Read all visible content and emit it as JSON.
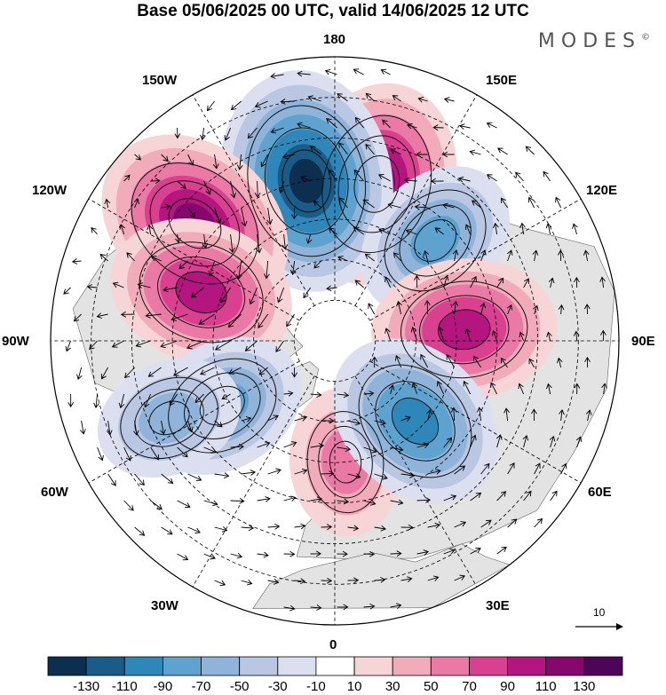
{
  "title": "Base 05/06/2025 00 UTC, valid 14/06/2025 12 UTC",
  "brand": {
    "text": "MODES",
    "mark": "©"
  },
  "longitude_labels": {
    "deg180": "180",
    "e150": "150E",
    "e120": "120E",
    "e90": "90E",
    "e60": "60E",
    "e30": "30E",
    "deg0": "0",
    "w30": "30W",
    "w60": "60W",
    "w90": "90W",
    "w120": "120W",
    "w150": "150W"
  },
  "reference_vector": {
    "label": "10",
    "icon": "arrow-right-icon"
  },
  "colorbar": {
    "tick_labels": [
      "-130",
      "-110",
      "-90",
      "-70",
      "-50",
      "-30",
      "-10",
      "10",
      "30",
      "50",
      "70",
      "90",
      "110",
      "130"
    ],
    "colors": [
      "#0d2f4f",
      "#1a5b88",
      "#2f86b9",
      "#5ea3cf",
      "#8fb3d9",
      "#b9c7e3",
      "#dcdff0",
      "#ffffff",
      "#f7d4d6",
      "#f2abb8",
      "#ea79a5",
      "#d9408f",
      "#b5157f",
      "#86086f",
      "#4d055a"
    ]
  },
  "anomaly_centers": [
    {
      "lon_deg": 165,
      "lat_deg": 50,
      "value": 110,
      "sign": "positive"
    },
    {
      "lon_deg": -170,
      "lat_deg": 50,
      "value": -130,
      "sign": "negative"
    },
    {
      "lon_deg": -130,
      "lat_deg": 45,
      "value": 110,
      "sign": "positive"
    },
    {
      "lon_deg": 135,
      "lat_deg": 55,
      "value": -70,
      "sign": "negative"
    },
    {
      "lon_deg": 95,
      "lat_deg": 58,
      "value": 90,
      "sign": "positive"
    },
    {
      "lon_deg": -110,
      "lat_deg": 55,
      "value": 90,
      "sign": "positive"
    },
    {
      "lon_deg": -60,
      "lat_deg": 58,
      "value": -70,
      "sign": "negative"
    },
    {
      "lon_deg": 5,
      "lat_deg": 60,
      "value": 50,
      "sign": "positive"
    },
    {
      "lon_deg": 45,
      "lat_deg": 62,
      "value": -90,
      "sign": "negative"
    },
    {
      "lon_deg": -65,
      "lat_deg": 45,
      "value": -50,
      "sign": "negative"
    }
  ]
}
